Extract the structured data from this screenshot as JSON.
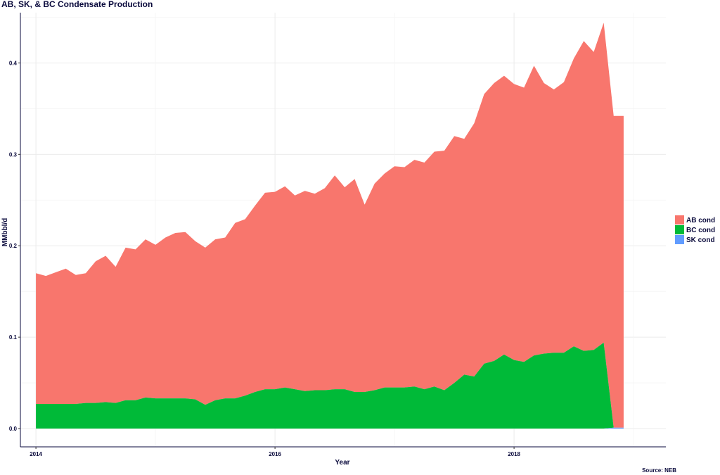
{
  "chart_data": {
    "type": "area",
    "title": "AB, SK, & BC Condensate Production",
    "xlabel": "Year",
    "ylabel": "MMbbl/d",
    "source": "Source: NEB",
    "ylim": [
      -0.02,
      0.455
    ],
    "xlim": [
      2013.87,
      2019.27
    ],
    "x_ticks": [
      2014,
      2016,
      2018
    ],
    "x_tick_labels": [
      "2014",
      "2016",
      "2018"
    ],
    "y_ticks": [
      0.0,
      0.1,
      0.2,
      0.3,
      0.4
    ],
    "y_tick_labels": [
      "0.0",
      "0.1",
      "0.2",
      "0.3",
      "0.4"
    ],
    "grid": true,
    "legend_position": "right",
    "stacked": true,
    "x": [
      "2014-01",
      "2014-02",
      "2014-03",
      "2014-04",
      "2014-05",
      "2014-06",
      "2014-07",
      "2014-08",
      "2014-09",
      "2014-10",
      "2014-11",
      "2014-12",
      "2015-01",
      "2015-02",
      "2015-03",
      "2015-04",
      "2015-05",
      "2015-06",
      "2015-07",
      "2015-08",
      "2015-09",
      "2015-10",
      "2015-11",
      "2015-12",
      "2016-01",
      "2016-02",
      "2016-03",
      "2016-04",
      "2016-05",
      "2016-06",
      "2016-07",
      "2016-08",
      "2016-09",
      "2016-10",
      "2016-11",
      "2016-12",
      "2017-01",
      "2017-02",
      "2017-03",
      "2017-04",
      "2017-05",
      "2017-06",
      "2017-07",
      "2017-08",
      "2017-09",
      "2017-10",
      "2017-11",
      "2017-12",
      "2018-01",
      "2018-02",
      "2018-03",
      "2018-04",
      "2018-05",
      "2018-06",
      "2018-07",
      "2018-08",
      "2018-09",
      "2018-10",
      "2018-11",
      "2018-12"
    ],
    "series": [
      {
        "name": "AB cond",
        "color": "#f8766d",
        "values": [
          0.143,
          0.14,
          0.144,
          0.148,
          0.141,
          0.142,
          0.155,
          0.16,
          0.149,
          0.167,
          0.165,
          0.173,
          0.168,
          0.176,
          0.181,
          0.182,
          0.173,
          0.172,
          0.176,
          0.176,
          0.192,
          0.193,
          0.204,
          0.215,
          0.216,
          0.22,
          0.212,
          0.219,
          0.215,
          0.221,
          0.234,
          0.221,
          0.233,
          0.205,
          0.226,
          0.234,
          0.242,
          0.241,
          0.248,
          0.248,
          0.257,
          0.262,
          0.27,
          0.258,
          0.277,
          0.295,
          0.304,
          0.305,
          0.302,
          0.3,
          0.317,
          0.296,
          0.288,
          0.296,
          0.315,
          0.339,
          0.326,
          0.35,
          0.341,
          0.341
        ]
      },
      {
        "name": "BC cond",
        "color": "#00ba38",
        "values": [
          0.027,
          0.027,
          0.027,
          0.027,
          0.027,
          0.028,
          0.028,
          0.029,
          0.028,
          0.031,
          0.031,
          0.034,
          0.033,
          0.033,
          0.033,
          0.033,
          0.032,
          0.026,
          0.031,
          0.033,
          0.033,
          0.036,
          0.04,
          0.043,
          0.043,
          0.045,
          0.043,
          0.041,
          0.042,
          0.042,
          0.043,
          0.043,
          0.04,
          0.04,
          0.042,
          0.045,
          0.045,
          0.045,
          0.046,
          0.043,
          0.046,
          0.042,
          0.05,
          0.059,
          0.057,
          0.071,
          0.074,
          0.081,
          0.075,
          0.073,
          0.08,
          0.082,
          0.083,
          0.083,
          0.09,
          0.085,
          0.086,
          0.094,
          0.0,
          0.0
        ]
      },
      {
        "name": "SK cond",
        "color": "#619cff",
        "values": [
          0,
          0,
          0,
          0,
          0,
          0,
          0,
          0,
          0,
          0,
          0,
          0,
          0,
          0,
          0,
          0,
          0,
          0,
          0,
          0,
          0,
          0,
          0,
          0,
          0,
          0,
          0,
          0,
          0,
          0,
          0,
          0,
          0,
          0,
          0,
          0,
          0,
          0,
          0,
          0,
          0,
          0,
          0,
          0,
          0,
          0,
          0,
          0,
          0,
          0,
          0,
          0,
          0,
          0,
          0,
          0,
          0,
          0,
          0.001,
          0.001
        ]
      }
    ]
  }
}
